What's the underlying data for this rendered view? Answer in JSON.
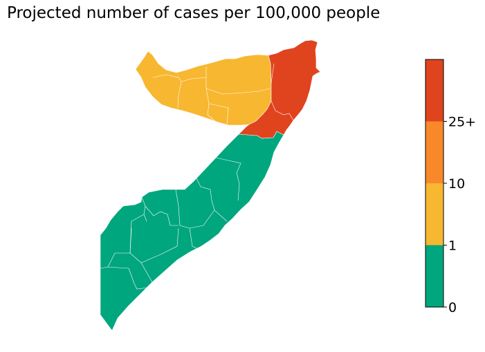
{
  "title": "Projected number of cases per 100,000 people",
  "colors": {
    "bin_0_1": "#00a67e",
    "bin_1_10": "#f8b730",
    "bin_10_25": "#f8882a",
    "bin_25_plus": "#e0441e",
    "boundary": "#ffffff"
  },
  "legend": {
    "type": "colorbar",
    "placement": "right",
    "bins": [
      {
        "range": "0-1",
        "color": "#00a67e"
      },
      {
        "range": "1-10",
        "color": "#f8b730"
      },
      {
        "range": "10-25",
        "color": "#f8882a"
      },
      {
        "range": "25+",
        "color": "#e0441e"
      }
    ],
    "tick_labels": [
      "0",
      "1",
      "10",
      "25+"
    ]
  },
  "regions_by_class": {
    "north_west": "bin_1_10",
    "north_east": "bin_25_plus",
    "center_and_south": "bin_0_1"
  }
}
